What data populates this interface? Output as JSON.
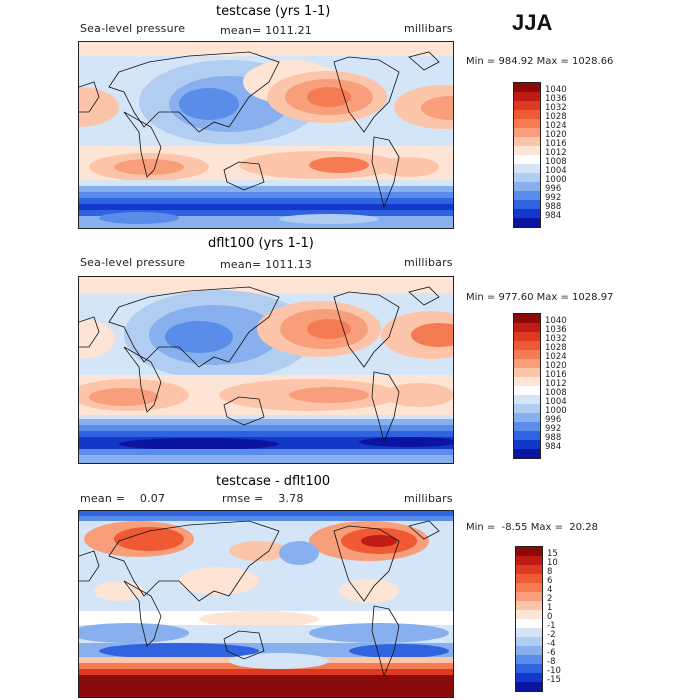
{
  "season": "JJA",
  "panels": [
    {
      "title": "testcase (yrs 1-1)",
      "left": "Sea-level pressure",
      "center": "mean= 1011.21",
      "right": "millibars",
      "minmax": "Min = 984.92 Max = 1028.66",
      "levels": [
        "1040",
        "1036",
        "1032",
        "1028",
        "1024",
        "1020",
        "1016",
        "1012",
        "1008",
        "1004",
        "1000",
        "996",
        "992",
        "988",
        "984"
      ],
      "colors": [
        "#8b0a0a",
        "#c01b15",
        "#de3a22",
        "#ef5a35",
        "#f47b52",
        "#f89e7a",
        "#fcc5aa",
        "#fde4d4",
        "#ffffff",
        "#d3e5f7",
        "#b2cdf2",
        "#88b0ee",
        "#5a8de9",
        "#2f63e0",
        "#1237c9",
        "#0a14a0"
      ]
    },
    {
      "title": "dflt100 (yrs 1-1)",
      "left": "Sea-level pressure",
      "center": "mean= 1011.13",
      "right": "millibars",
      "minmax": "Min = 977.60 Max = 1028.97",
      "levels": [
        "1040",
        "1036",
        "1032",
        "1028",
        "1024",
        "1020",
        "1016",
        "1012",
        "1008",
        "1004",
        "1000",
        "996",
        "992",
        "988",
        "984"
      ],
      "colors": [
        "#8b0a0a",
        "#c01b15",
        "#de3a22",
        "#ef5a35",
        "#f47b52",
        "#f89e7a",
        "#fcc5aa",
        "#fde4d4",
        "#ffffff",
        "#d3e5f7",
        "#b2cdf2",
        "#88b0ee",
        "#5a8de9",
        "#2f63e0",
        "#1237c9",
        "#0a14a0"
      ]
    },
    {
      "title": "testcase - dflt100",
      "left": "mean =    0.07",
      "center": "rmse =    3.78",
      "right": "millibars",
      "minmax": "Min =  -8.55 Max =  20.28",
      "levels": [
        "15",
        "10",
        "8",
        "6",
        "4",
        "2",
        "1",
        "0",
        "-1",
        "-2",
        "-4",
        "-6",
        "-8",
        "-10",
        "-15"
      ],
      "colors": [
        "#8b0a0a",
        "#c01b15",
        "#de3a22",
        "#ef5a35",
        "#f47b52",
        "#f89e7a",
        "#fcc5aa",
        "#fde4d4",
        "#ffffff",
        "#d3e5f7",
        "#b2cdf2",
        "#88b0ee",
        "#5a8de9",
        "#2f63e0",
        "#1237c9",
        "#0a14a0"
      ]
    }
  ]
}
